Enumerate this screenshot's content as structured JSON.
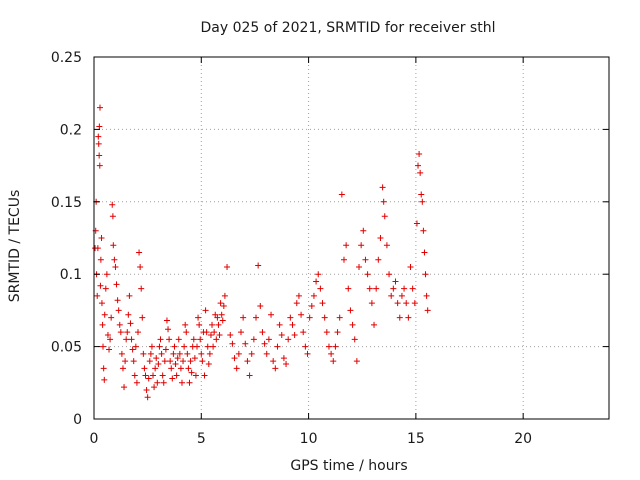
{
  "chart_data": {
    "type": "scatter",
    "title": "Day 025 of 2021, SRMTID for receiver sthl",
    "xlabel": "GPS time / hours",
    "ylabel": "SRMTID / TECUs",
    "xlim": [
      0,
      24
    ],
    "ylim": [
      0,
      0.25
    ],
    "x_ticks": [
      0,
      5,
      10,
      15,
      20
    ],
    "x_tick_labels": [
      "0",
      "5",
      "10",
      "15",
      "20"
    ],
    "y_ticks": [
      0,
      0.05,
      0.1,
      0.15,
      0.2,
      0.25
    ],
    "y_tick_labels": [
      "0",
      "0.05",
      "0.1",
      "0.15",
      "0.2",
      "0.25"
    ],
    "grid": true,
    "marker": "+",
    "series": [
      {
        "name": "SRMTID",
        "color": "#e00000",
        "points": [
          [
            0.05,
            0.118
          ],
          [
            0.08,
            0.13
          ],
          [
            0.1,
            0.15
          ],
          [
            0.12,
            0.1
          ],
          [
            0.15,
            0.085
          ],
          [
            0.18,
            0.118
          ],
          [
            0.2,
            0.195
          ],
          [
            0.22,
            0.19
          ],
          [
            0.24,
            0.182
          ],
          [
            0.25,
            0.202
          ],
          [
            0.27,
            0.175
          ],
          [
            0.28,
            0.215
          ],
          [
            0.3,
            0.092
          ],
          [
            0.32,
            0.11
          ],
          [
            0.35,
            0.125
          ],
          [
            0.37,
            0.08
          ],
          [
            0.4,
            0.065
          ],
          [
            0.42,
            0.05
          ],
          [
            0.45,
            0.035
          ],
          [
            0.48,
            0.027
          ],
          [
            0.5,
            0.072
          ],
          [
            0.55,
            0.09
          ],
          [
            0.6,
            0.1
          ],
          [
            0.65,
            0.058
          ],
          [
            0.7,
            0.048
          ],
          [
            0.75,
            0.055
          ],
          [
            0.8,
            0.07
          ],
          [
            0.85,
            0.148
          ],
          [
            0.88,
            0.14
          ],
          [
            0.9,
            0.12
          ],
          [
            0.95,
            0.11
          ],
          [
            1.0,
            0.105
          ],
          [
            1.05,
            0.093
          ],
          [
            1.1,
            0.082
          ],
          [
            1.15,
            0.075
          ],
          [
            1.2,
            0.065
          ],
          [
            1.25,
            0.06
          ],
          [
            1.3,
            0.045
          ],
          [
            1.35,
            0.035
          ],
          [
            1.4,
            0.022
          ],
          [
            1.45,
            0.04
          ],
          [
            1.5,
            0.055
          ],
          [
            1.55,
            0.06
          ],
          [
            1.6,
            0.072
          ],
          [
            1.65,
            0.085
          ],
          [
            1.7,
            0.066
          ],
          [
            1.75,
            0.055
          ],
          [
            1.8,
            0.048
          ],
          [
            1.85,
            0.04
          ],
          [
            1.9,
            0.03
          ],
          [
            1.95,
            0.05
          ],
          [
            2.0,
            0.025
          ],
          [
            2.05,
            0.06
          ],
          [
            2.1,
            0.115
          ],
          [
            2.15,
            0.105
          ],
          [
            2.2,
            0.09
          ],
          [
            2.25,
            0.07
          ],
          [
            2.3,
            0.045
          ],
          [
            2.35,
            0.035
          ],
          [
            2.4,
            0.03
          ],
          [
            2.45,
            0.02
          ],
          [
            2.5,
            0.015
          ],
          [
            2.55,
            0.028
          ],
          [
            2.6,
            0.04
          ],
          [
            2.65,
            0.045
          ],
          [
            2.7,
            0.05
          ],
          [
            2.75,
            0.03
          ],
          [
            2.8,
            0.022
          ],
          [
            2.85,
            0.035
          ],
          [
            2.9,
            0.042
          ],
          [
            2.95,
            0.025
          ],
          [
            3.0,
            0.038
          ],
          [
            3.05,
            0.05
          ],
          [
            3.1,
            0.055
          ],
          [
            3.15,
            0.045
          ],
          [
            3.2,
            0.03
          ],
          [
            3.25,
            0.025
          ],
          [
            3.3,
            0.04
          ],
          [
            3.35,
            0.048
          ],
          [
            3.4,
            0.068
          ],
          [
            3.45,
            0.062
          ],
          [
            3.5,
            0.055
          ],
          [
            3.55,
            0.04
          ],
          [
            3.6,
            0.035
          ],
          [
            3.65,
            0.028
          ],
          [
            3.7,
            0.045
          ],
          [
            3.75,
            0.05
          ],
          [
            3.8,
            0.038
          ],
          [
            3.85,
            0.03
          ],
          [
            3.9,
            0.042
          ],
          [
            3.95,
            0.055
          ],
          [
            4.0,
            0.045
          ],
          [
            4.05,
            0.035
          ],
          [
            4.1,
            0.025
          ],
          [
            4.15,
            0.04
          ],
          [
            4.2,
            0.05
          ],
          [
            4.25,
            0.065
          ],
          [
            4.3,
            0.06
          ],
          [
            4.35,
            0.045
          ],
          [
            4.4,
            0.035
          ],
          [
            4.45,
            0.025
          ],
          [
            4.5,
            0.04
          ],
          [
            4.55,
            0.032
          ],
          [
            4.6,
            0.05
          ],
          [
            4.65,
            0.055
          ],
          [
            4.7,
            0.042
          ],
          [
            4.75,
            0.03
          ],
          [
            4.8,
            0.05
          ],
          [
            4.85,
            0.07
          ],
          [
            4.9,
            0.065
          ],
          [
            4.95,
            0.055
          ],
          [
            5.0,
            0.045
          ],
          [
            5.05,
            0.04
          ],
          [
            5.1,
            0.06
          ],
          [
            5.15,
            0.03
          ],
          [
            5.2,
            0.075
          ],
          [
            5.25,
            0.06
          ],
          [
            5.3,
            0.05
          ],
          [
            5.35,
            0.038
          ],
          [
            5.4,
            0.045
          ],
          [
            5.45,
            0.058
          ],
          [
            5.5,
            0.065
          ],
          [
            5.55,
            0.05
          ],
          [
            5.6,
            0.06
          ],
          [
            5.65,
            0.072
          ],
          [
            5.7,
            0.055
          ],
          [
            5.75,
            0.07
          ],
          [
            5.8,
            0.065
          ],
          [
            5.85,
            0.058
          ],
          [
            5.9,
            0.08
          ],
          [
            5.95,
            0.072
          ],
          [
            6.0,
            0.068
          ],
          [
            6.05,
            0.078
          ],
          [
            6.1,
            0.085
          ],
          [
            6.2,
            0.105
          ],
          [
            6.35,
            0.058
          ],
          [
            6.45,
            0.052
          ],
          [
            6.55,
            0.042
          ],
          [
            6.65,
            0.035
          ],
          [
            6.75,
            0.045
          ],
          [
            6.85,
            0.06
          ],
          [
            6.95,
            0.07
          ],
          [
            7.05,
            0.052
          ],
          [
            7.15,
            0.04
          ],
          [
            7.25,
            0.03
          ],
          [
            7.35,
            0.045
          ],
          [
            7.45,
            0.055
          ],
          [
            7.55,
            0.07
          ],
          [
            7.65,
            0.106
          ],
          [
            7.75,
            0.078
          ],
          [
            7.85,
            0.06
          ],
          [
            7.95,
            0.052
          ],
          [
            8.05,
            0.045
          ],
          [
            8.15,
            0.055
          ],
          [
            8.25,
            0.072
          ],
          [
            8.35,
            0.04
          ],
          [
            8.45,
            0.035
          ],
          [
            8.55,
            0.05
          ],
          [
            8.65,
            0.065
          ],
          [
            8.75,
            0.058
          ],
          [
            8.85,
            0.042
          ],
          [
            8.95,
            0.038
          ],
          [
            9.05,
            0.055
          ],
          [
            9.15,
            0.07
          ],
          [
            9.25,
            0.065
          ],
          [
            9.35,
            0.058
          ],
          [
            9.45,
            0.08
          ],
          [
            9.55,
            0.085
          ],
          [
            9.65,
            0.072
          ],
          [
            9.75,
            0.06
          ],
          [
            9.85,
            0.05
          ],
          [
            9.95,
            0.045
          ],
          [
            10.05,
            0.07
          ],
          [
            10.15,
            0.078
          ],
          [
            10.25,
            0.085
          ],
          [
            10.35,
            0.095
          ],
          [
            10.45,
            0.1
          ],
          [
            10.55,
            0.09
          ],
          [
            10.65,
            0.08
          ],
          [
            10.75,
            0.07
          ],
          [
            10.85,
            0.06
          ],
          [
            10.95,
            0.05
          ],
          [
            11.05,
            0.045
          ],
          [
            11.15,
            0.04
          ],
          [
            11.25,
            0.05
          ],
          [
            11.35,
            0.06
          ],
          [
            11.45,
            0.07
          ],
          [
            11.55,
            0.155
          ],
          [
            11.65,
            0.11
          ],
          [
            11.75,
            0.12
          ],
          [
            11.85,
            0.09
          ],
          [
            11.95,
            0.075
          ],
          [
            12.05,
            0.065
          ],
          [
            12.15,
            0.055
          ],
          [
            12.25,
            0.04
          ],
          [
            12.35,
            0.105
          ],
          [
            12.45,
            0.12
          ],
          [
            12.55,
            0.13
          ],
          [
            12.65,
            0.11
          ],
          [
            12.75,
            0.1
          ],
          [
            12.85,
            0.09
          ],
          [
            12.95,
            0.08
          ],
          [
            13.05,
            0.065
          ],
          [
            13.15,
            0.09
          ],
          [
            13.25,
            0.11
          ],
          [
            13.35,
            0.125
          ],
          [
            13.45,
            0.16
          ],
          [
            13.5,
            0.15
          ],
          [
            13.55,
            0.14
          ],
          [
            13.65,
            0.12
          ],
          [
            13.75,
            0.1
          ],
          [
            13.85,
            0.085
          ],
          [
            13.95,
            0.09
          ],
          [
            14.05,
            0.095
          ],
          [
            14.15,
            0.08
          ],
          [
            14.25,
            0.07
          ],
          [
            14.35,
            0.085
          ],
          [
            14.45,
            0.09
          ],
          [
            14.55,
            0.08
          ],
          [
            14.65,
            0.07
          ],
          [
            14.75,
            0.105
          ],
          [
            14.85,
            0.09
          ],
          [
            14.95,
            0.08
          ],
          [
            15.05,
            0.135
          ],
          [
            15.1,
            0.175
          ],
          [
            15.15,
            0.183
          ],
          [
            15.2,
            0.17
          ],
          [
            15.25,
            0.155
          ],
          [
            15.3,
            0.15
          ],
          [
            15.35,
            0.13
          ],
          [
            15.4,
            0.115
          ],
          [
            15.45,
            0.1
          ],
          [
            15.5,
            0.085
          ],
          [
            15.55,
            0.075
          ]
        ]
      }
    ]
  }
}
